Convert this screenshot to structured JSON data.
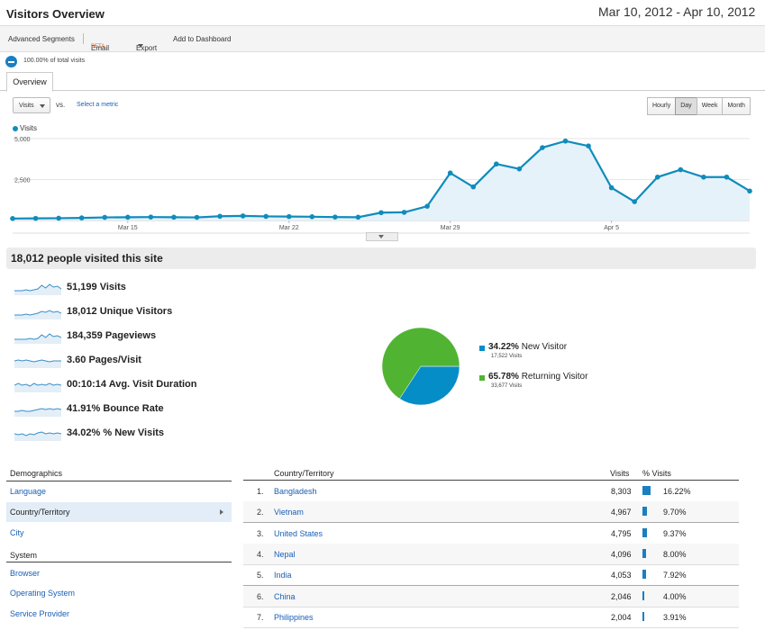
{
  "header": {
    "title": "Visitors Overview",
    "date_range": "Mar 10, 2012 - Apr 10, 2012"
  },
  "toolbar": {
    "advanced_segments": "Advanced Segments",
    "email": "Email",
    "email_badge": "BETA",
    "export": "Export",
    "add_to_dashboard": "Add to Dashboard"
  },
  "segment": {
    "text": "100.00% of total visits"
  },
  "tabs": {
    "overview": "Overview"
  },
  "controls": {
    "metric": "Visits",
    "vs": "vs.",
    "select_metric": "Select a metric",
    "granularity": [
      "Hourly",
      "Day",
      "Week",
      "Month"
    ],
    "active_granularity": "Day"
  },
  "chart_data": {
    "type": "area",
    "series": [
      {
        "name": "Visits",
        "values": [
          120,
          130,
          140,
          160,
          190,
          200,
          210,
          200,
          190,
          260,
          280,
          250,
          240,
          230,
          210,
          200,
          480,
          500,
          870,
          2900,
          2050,
          3450,
          3150,
          4450,
          4850,
          4550,
          2000,
          1150,
          2650,
          3100,
          2650,
          2650,
          1800
        ]
      }
    ],
    "ylim": [
      0,
      5000
    ],
    "yticks": [
      "5,000",
      "2,500"
    ],
    "xtick_labels": [
      "Mar 15",
      "Mar 22",
      "Mar 29",
      "Apr 5"
    ],
    "xtick_index": [
      5,
      12,
      19,
      26
    ],
    "legend": "top-left",
    "grid": true,
    "color": "#0f8cbc"
  },
  "summary": {
    "text": "18,012 people visited this site"
  },
  "stats": [
    {
      "value": "51,199",
      "label": "Visits"
    },
    {
      "value": "18,012",
      "label": "Unique Visitors"
    },
    {
      "value": "184,359",
      "label": "Pageviews"
    },
    {
      "value": "3.60",
      "label": "Pages/Visit"
    },
    {
      "value": "00:10:14",
      "label": "Avg. Visit Duration"
    },
    {
      "value": "41.91%",
      "label": "Bounce Rate"
    },
    {
      "value": "34.02%",
      "label": "% New Visits"
    }
  ],
  "pie": {
    "slices": [
      {
        "pct": "34.22%",
        "label": "New Visitor",
        "sub": "17,522 Visits",
        "fraction": 0.3422,
        "color": "#058dc7"
      },
      {
        "pct": "65.78%",
        "label": "Returning Visitor",
        "sub": "33,677 Visits",
        "fraction": 0.6578,
        "color": "#50b432"
      }
    ]
  },
  "demographics": {
    "heading": "Demographics",
    "items": [
      "Language",
      "Country/Territory",
      "City"
    ],
    "active": "Country/Territory",
    "system_heading": "System",
    "system_items": [
      "Browser",
      "Operating System",
      "Service Provider"
    ]
  },
  "table": {
    "headers": {
      "country": "Country/Territory",
      "visits": "Visits",
      "pct": "% Visits"
    },
    "rows": [
      {
        "num": "1.",
        "country": "Bangladesh",
        "visits": "8,303",
        "pct": "16.22%",
        "fraction": 0.1622
      },
      {
        "num": "2.",
        "country": "Vietnam",
        "visits": "4,967",
        "pct": "9.70%",
        "fraction": 0.097
      },
      {
        "num": "3.",
        "country": "United States",
        "visits": "4,795",
        "pct": "9.37%",
        "fraction": 0.0937
      },
      {
        "num": "4.",
        "country": "Nepal",
        "visits": "4,096",
        "pct": "8.00%",
        "fraction": 0.08
      },
      {
        "num": "5.",
        "country": "India",
        "visits": "4,053",
        "pct": "7.92%",
        "fraction": 0.0792
      },
      {
        "num": "6.",
        "country": "China",
        "visits": "2,046",
        "pct": "4.00%",
        "fraction": 0.04
      },
      {
        "num": "7.",
        "country": "Philippines",
        "visits": "2,004",
        "pct": "3.91%",
        "fraction": 0.0391
      }
    ]
  }
}
